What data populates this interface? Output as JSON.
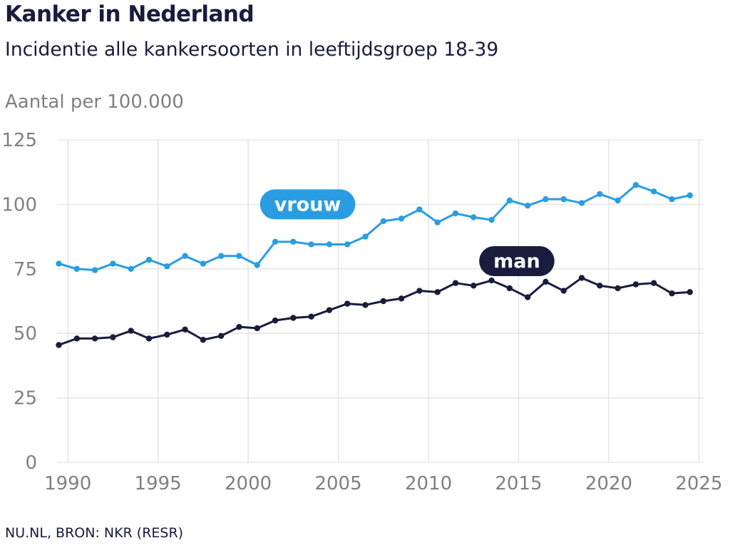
{
  "chart_data": {
    "type": "line",
    "title": "Kanker in Nederland",
    "subtitle": "Incidentie alle kankersoorten in leeftijdsgroep 18-39",
    "ylabel": "Aantal per 100.000",
    "xlabel": "",
    "xlim": [
      1989.4,
      2025.3
    ],
    "ylim": [
      0,
      125
    ],
    "x_ticks": [
      1990,
      1995,
      2000,
      2005,
      2010,
      2015,
      2020,
      2025
    ],
    "y_ticks": [
      0,
      25,
      50,
      75,
      100,
      125
    ],
    "grid": true,
    "legend": "inline labels",
    "x": [
      1989.5,
      1990.5,
      1991.5,
      1992.5,
      1993.5,
      1994.5,
      1995.5,
      1996.5,
      1997.5,
      1998.5,
      1999.5,
      2000.5,
      2001.5,
      2002.5,
      2003.5,
      2004.5,
      2005.5,
      2006.5,
      2007.5,
      2008.5,
      2009.5,
      2010.5,
      2011.5,
      2012.5,
      2013.5,
      2014.5,
      2015.5,
      2016.5,
      2017.5,
      2018.5,
      2019.5,
      2020.5,
      2021.5,
      2022.5,
      2023.5,
      2024.5
    ],
    "series": [
      {
        "name": "vrouw",
        "color": "#2a9de2",
        "values": [
          77.0,
          75.0,
          74.5,
          77.0,
          75.0,
          78.5,
          76.0,
          80.0,
          77.0,
          80.0,
          80.0,
          76.5,
          85.5,
          85.5,
          84.5,
          84.5,
          84.5,
          87.5,
          93.5,
          94.5,
          98.0,
          93.0,
          96.5,
          95.0,
          94.0,
          101.5,
          99.5,
          102.0,
          102.0,
          100.5,
          104.0,
          101.5,
          107.5,
          105.0,
          102.0,
          103.5
        ]
      },
      {
        "name": "man",
        "color": "#191c3d",
        "values": [
          45.5,
          48.0,
          48.0,
          48.5,
          51.0,
          48.0,
          49.5,
          51.5,
          47.5,
          49.0,
          52.5,
          52.0,
          55.0,
          56.0,
          56.5,
          59.0,
          61.5,
          61.0,
          62.5,
          63.5,
          66.5,
          66.0,
          69.5,
          68.5,
          70.5,
          67.5,
          64.0,
          70.0,
          66.5,
          71.5,
          68.5,
          67.5,
          69.0,
          69.5,
          65.5,
          66.0
        ]
      }
    ],
    "annotations": [
      {
        "text": "vrouw",
        "series": "vrouw",
        "x": 2003.3,
        "y": 100
      },
      {
        "text": "man",
        "series": "man",
        "x": 2014.9,
        "y": 78
      }
    ],
    "source": "NU.NL, BRON: NKR (RESR)"
  }
}
